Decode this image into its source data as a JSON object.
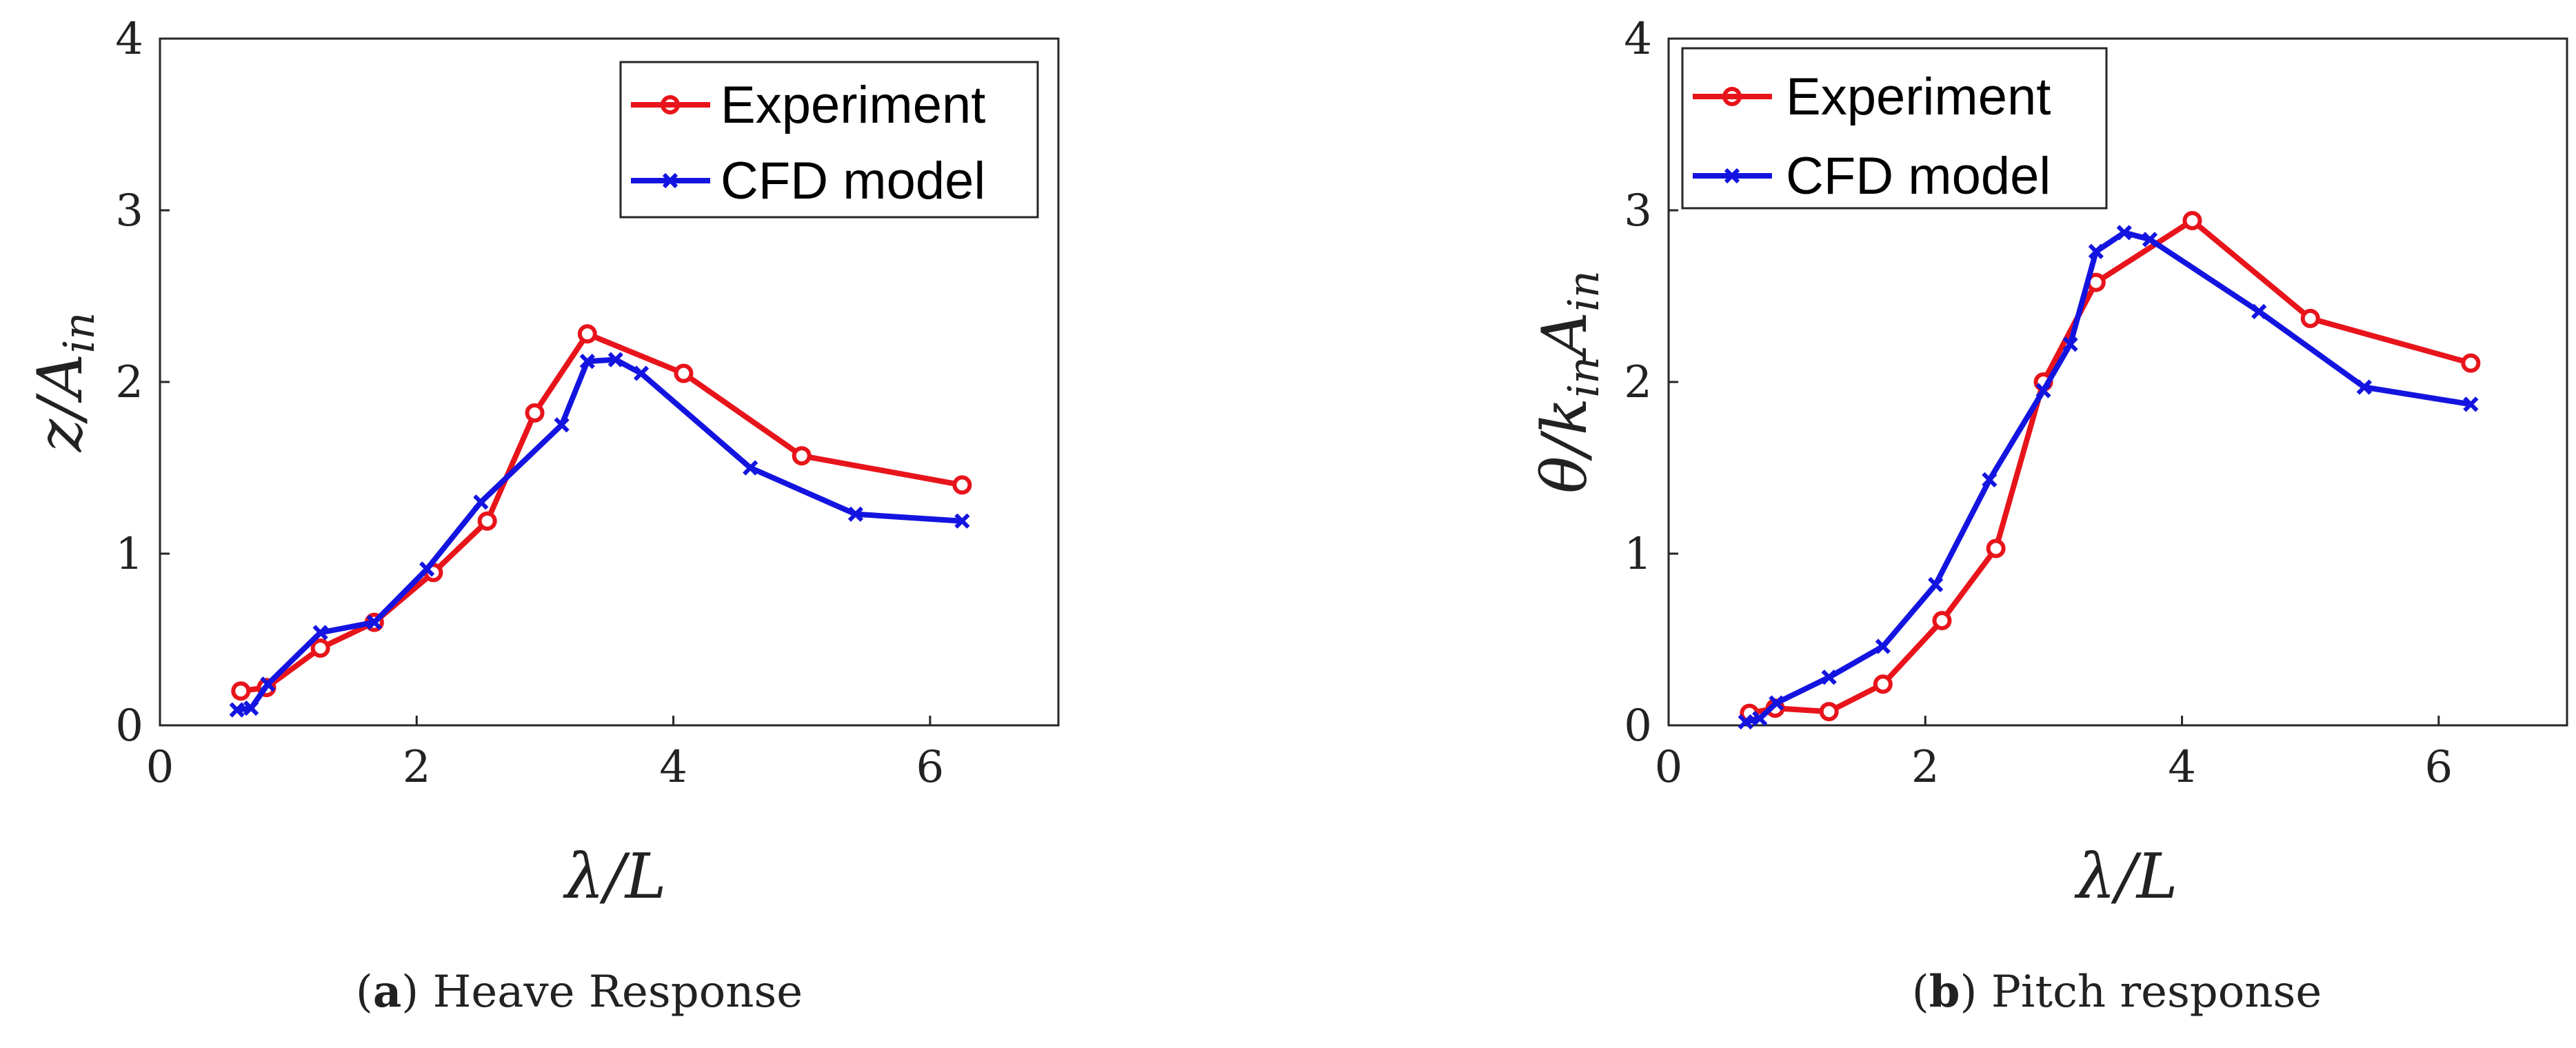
{
  "chart_data": [
    {
      "type": "line",
      "title": "",
      "caption": {
        "letter": "a",
        "text": "Heave Response"
      },
      "xlabel": "λ/L",
      "ylabel": {
        "main": "z/A",
        "sub": "in"
      },
      "xlim": [
        0,
        7
      ],
      "ylim": [
        0,
        4
      ],
      "xticks": [
        0,
        2,
        4,
        6
      ],
      "yticks": [
        0,
        1,
        2,
        3,
        4
      ],
      "grid": false,
      "legend": "top-right",
      "series": [
        {
          "name": "Experiment",
          "color": "#e8141b",
          "marker": "circle",
          "x": [
            0.63,
            0.83,
            1.25,
            1.67,
            2.13,
            2.55,
            2.92,
            3.33,
            4.08,
            5.0,
            6.25
          ],
          "y": [
            0.2,
            0.22,
            0.45,
            0.6,
            0.89,
            1.19,
            1.82,
            2.28,
            2.05,
            1.57,
            1.4
          ]
        },
        {
          "name": "CFD model",
          "color": "#1414e0",
          "marker": "x",
          "x": [
            0.6,
            0.71,
            0.84,
            1.25,
            1.67,
            2.08,
            2.5,
            3.13,
            3.33,
            3.55,
            3.75,
            4.6,
            5.42,
            6.25
          ],
          "y": [
            0.09,
            0.1,
            0.24,
            0.54,
            0.6,
            0.91,
            1.3,
            1.75,
            2.12,
            2.13,
            2.05,
            1.5,
            1.23,
            1.19
          ]
        }
      ]
    },
    {
      "type": "line",
      "title": "",
      "caption": {
        "letter": "b",
        "text": "Pitch response"
      },
      "xlabel": "λ/L",
      "ylabel": {
        "main": "θ/k",
        "sub": "in",
        "main2": "A",
        "sub2": "in"
      },
      "xlim": [
        0,
        7
      ],
      "ylim": [
        0,
        4
      ],
      "xticks": [
        0,
        2,
        4,
        6
      ],
      "yticks": [
        0,
        1,
        2,
        3,
        4
      ],
      "grid": false,
      "legend": "top-left",
      "series": [
        {
          "name": "Experiment",
          "color": "#e8141b",
          "marker": "circle",
          "x": [
            0.63,
            0.83,
            1.25,
            1.67,
            2.13,
            2.55,
            2.92,
            3.33,
            4.08,
            5.0,
            6.25
          ],
          "y": [
            0.07,
            0.1,
            0.08,
            0.24,
            0.61,
            1.03,
            2.0,
            2.58,
            2.94,
            2.37,
            2.11
          ]
        },
        {
          "name": "CFD model",
          "color": "#1414e0",
          "marker": "x",
          "x": [
            0.6,
            0.71,
            0.84,
            1.25,
            1.67,
            2.08,
            2.5,
            2.92,
            3.13,
            3.33,
            3.55,
            3.75,
            4.6,
            5.42,
            6.25
          ],
          "y": [
            0.02,
            0.04,
            0.13,
            0.28,
            0.46,
            0.82,
            1.43,
            1.95,
            2.22,
            2.76,
            2.87,
            2.83,
            2.41,
            1.97,
            1.87
          ]
        }
      ]
    }
  ]
}
